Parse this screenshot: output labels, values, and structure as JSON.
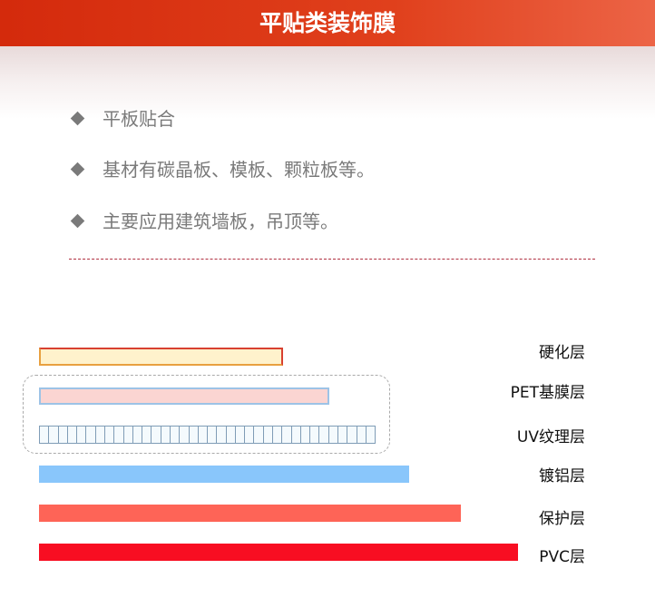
{
  "header": {
    "title": "平贴类装饰膜"
  },
  "bullets": [
    "平板贴合",
    "基材有碳晶板、模板、颗粒板等。",
    "主要应用建筑墙板，吊顶等。"
  ],
  "layers": [
    {
      "label": "硬化层",
      "fill": "#fff2cc",
      "border": "#e05030"
    },
    {
      "label": "PET基膜层",
      "fill": "#fbd5d2",
      "border": "#9dc3e6"
    },
    {
      "label": "UV纹理层",
      "fill": "#eef6fb",
      "border": "#7f9cb6"
    },
    {
      "label": "镀铝层",
      "fill": "#89c6fb"
    },
    {
      "label": "保护层",
      "fill": "#fe6457"
    },
    {
      "label": "PVC层",
      "fill": "#f80e22"
    }
  ]
}
